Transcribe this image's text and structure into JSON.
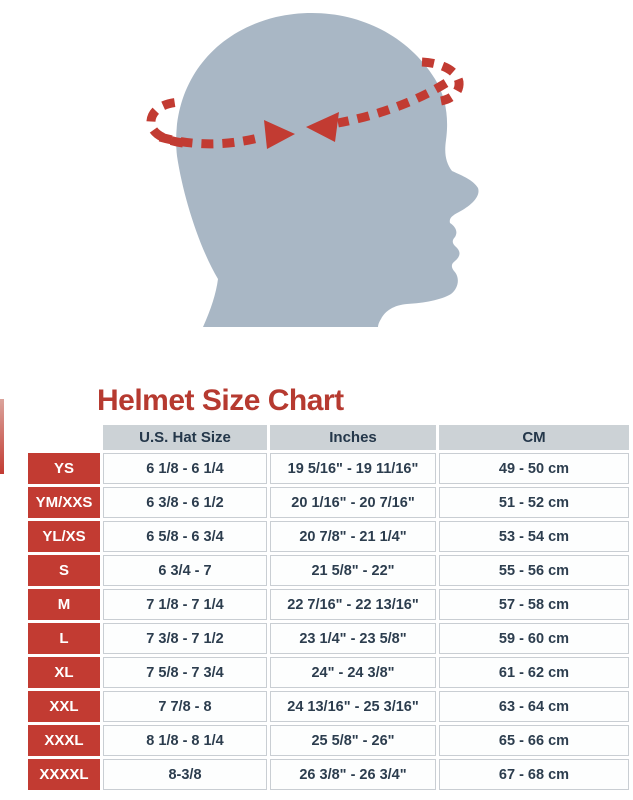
{
  "illustration": {
    "description": "head-circumference-measurement",
    "head_color": "#a9b7c5",
    "band_color": "#c23b32"
  },
  "chart_data": {
    "type": "table",
    "title": "Helmet Size Chart",
    "columns": [
      "",
      "U.S. Hat Size",
      "Inches",
      "CM"
    ],
    "rows": [
      [
        "YS",
        "6 1/8 - 6 1/4",
        "19 5/16\" - 19 11/16\"",
        "49 - 50 cm"
      ],
      [
        "YM/XXS",
        "6 3/8 - 6 1/2",
        "20 1/16\" - 20 7/16\"",
        "51 - 52 cm"
      ],
      [
        "YL/XS",
        "6 5/8 - 6 3/4",
        "20 7/8\" - 21 1/4\"",
        "53 - 54 cm"
      ],
      [
        "S",
        "6 3/4 - 7",
        "21 5/8\" - 22\"",
        "55 - 56 cm"
      ],
      [
        "M",
        "7 1/8 - 7 1/4",
        "22 7/16\" - 22 13/16\"",
        "57 - 58 cm"
      ],
      [
        "L",
        "7 3/8 - 7 1/2",
        "23 1/4\" - 23 5/8\"",
        "59 - 60 cm"
      ],
      [
        "XL",
        "7 5/8 - 7 3/4",
        "24\" - 24 3/8\"",
        "61 - 62 cm"
      ],
      [
        "XXL",
        "7 7/8 - 8",
        "24 13/16\" - 25 3/16\"",
        "63 - 64 cm"
      ],
      [
        "XXXL",
        "8 1/8 - 8 1/4",
        "25 5/8\" - 26\"",
        "65 - 66 cm"
      ],
      [
        "XXXXL",
        "8-3/8",
        "26 3/8\" - 26 3/4\"",
        "67 - 68 cm"
      ]
    ]
  },
  "colors": {
    "title_red": "#b63a30",
    "accent_red": "#c23b32",
    "header_bg": "#ccd2d6",
    "header_text": "#24374a",
    "cell_text": "#2c3d4e",
    "cell_border": "#c9ced3",
    "head_gray": "#a9b7c5"
  }
}
